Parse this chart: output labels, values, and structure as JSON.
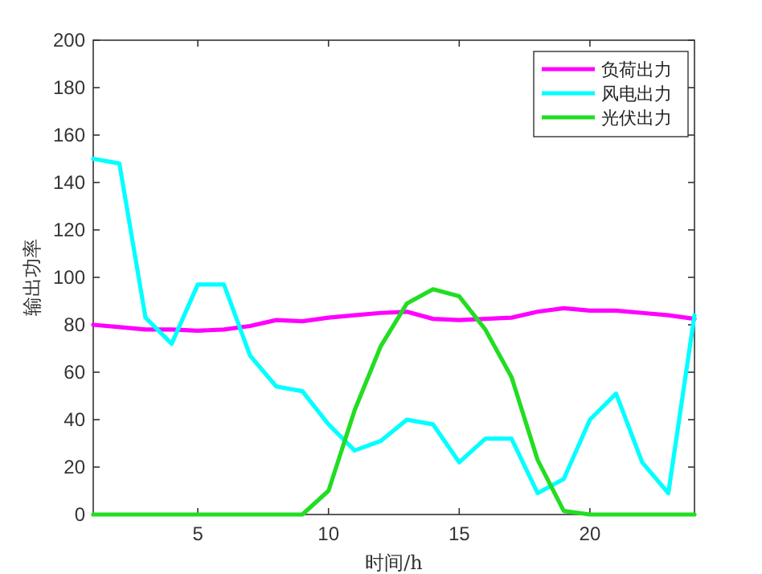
{
  "chart_data": {
    "type": "line",
    "xlabel": "时间/h",
    "ylabel": "输出功率",
    "x": [
      1,
      2,
      3,
      4,
      5,
      6,
      7,
      8,
      9,
      10,
      11,
      12,
      13,
      14,
      15,
      16,
      17,
      18,
      19,
      20,
      21,
      22,
      23,
      24
    ],
    "series": [
      {
        "name": "负荷出力",
        "color": "#ff00ff",
        "values": [
          80,
          79,
          78,
          78,
          77.5,
          78,
          79.5,
          82,
          81.5,
          83,
          84,
          85,
          85.5,
          82.5,
          82,
          82.5,
          83,
          85.5,
          87,
          86,
          86,
          85,
          84,
          82.5
        ]
      },
      {
        "name": "风电出力",
        "color": "#00ffff",
        "values": [
          150,
          148,
          83,
          72,
          97,
          97,
          67,
          54,
          52,
          38,
          27,
          31,
          40,
          38,
          22,
          32,
          32,
          9,
          15,
          40,
          51,
          22,
          9,
          84
        ]
      },
      {
        "name": "光伏出力",
        "color": "#22dd22",
        "values": [
          0,
          0,
          0,
          0,
          0,
          0,
          0,
          0,
          0,
          10,
          44,
          71,
          89,
          95,
          92,
          78,
          58,
          23,
          1.5,
          0,
          0,
          0,
          0,
          0
        ]
      }
    ],
    "xlim": [
      1,
      24
    ],
    "xticks": [
      5,
      10,
      15,
      20
    ],
    "ylim": [
      0,
      200
    ],
    "yticks": [
      0,
      20,
      40,
      60,
      80,
      100,
      120,
      140,
      160,
      180,
      200
    ],
    "legend": "top right",
    "grid": false,
    "marker": "none",
    "line_style": "solid"
  }
}
